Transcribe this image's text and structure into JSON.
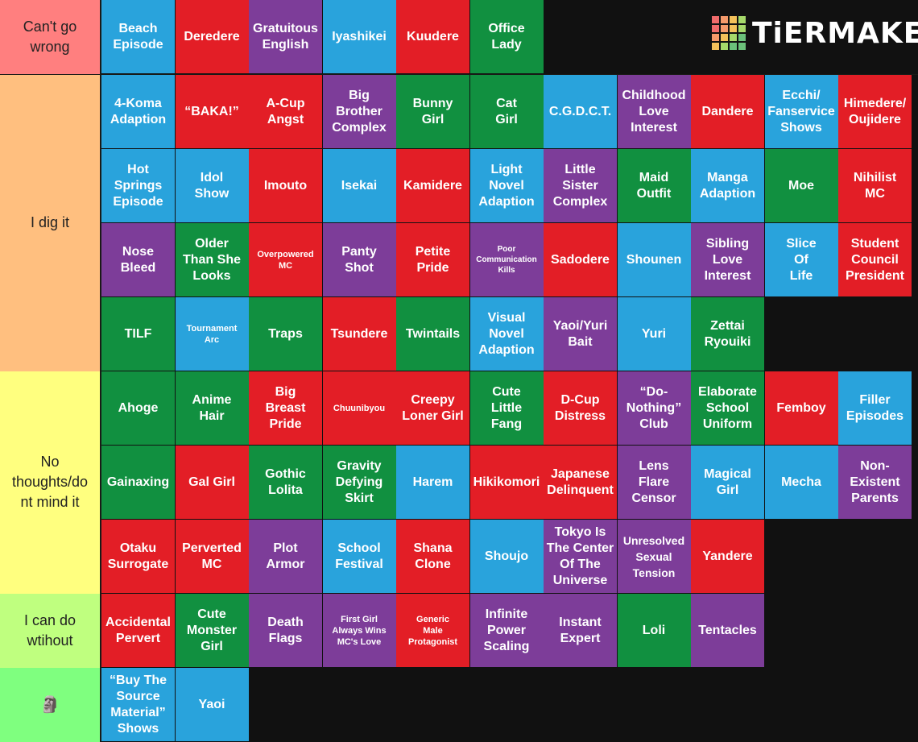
{
  "logo": {
    "text": "TiERMAKER",
    "grid_colors": [
      "#f06b6b",
      "#f59a6b",
      "#f4c15a",
      "#a6d96a",
      "#f06b6b",
      "#f59a6b",
      "#f4c15a",
      "#a6d96a",
      "#f59a6b",
      "#f4c15a",
      "#a6d96a",
      "#6bc17a",
      "#f4c15a",
      "#a6d96a",
      "#6bc17a",
      "#6bc17a"
    ]
  },
  "tiers": [
    {
      "label": "Can't go\nwrong",
      "color": "#ff7f7f",
      "items": [
        {
          "text": "Beach\nEpisode",
          "color": "#29a3dc"
        },
        {
          "text": "Deredere",
          "color": "#e31e26"
        },
        {
          "text": "Gratuitous\nEnglish",
          "color": "#7d3d99"
        },
        {
          "text": "Iyashikei",
          "color": "#29a3dc"
        },
        {
          "text": "Kuudere",
          "color": "#e31e26"
        },
        {
          "text": "Office\nLady",
          "color": "#119040"
        }
      ]
    },
    {
      "label": "I dig it",
      "color": "#ffbf7f",
      "items": [
        {
          "text": "4-Koma\nAdaption",
          "color": "#29a3dc"
        },
        {
          "text": "“BAKA!”",
          "color": "#e31e26"
        },
        {
          "text": "A-Cup\nAngst",
          "color": "#e31e26"
        },
        {
          "text": "Big\nBrother\nComplex",
          "color": "#7d3d99"
        },
        {
          "text": "Bunny\nGirl",
          "color": "#119040"
        },
        {
          "text": "Cat\nGirl",
          "color": "#119040"
        },
        {
          "text": "C.G.D.C.T.",
          "color": "#29a3dc"
        },
        {
          "text": "Childhood\nLove\nInterest",
          "color": "#7d3d99"
        },
        {
          "text": "Dandere",
          "color": "#e31e26"
        },
        {
          "text": "Ecchi/\nFanservice\nShows",
          "color": "#29a3dc"
        },
        {
          "text": "Himedere/\nOujidere",
          "color": "#e31e26"
        },
        {
          "text": "Hot\nSprings\nEpisode",
          "color": "#29a3dc"
        },
        {
          "text": "Idol\nShow",
          "color": "#29a3dc"
        },
        {
          "text": "Imouto",
          "color": "#e31e26"
        },
        {
          "text": "Isekai",
          "color": "#29a3dc"
        },
        {
          "text": "Kamidere",
          "color": "#e31e26"
        },
        {
          "text": "Light\nNovel\nAdaption",
          "color": "#29a3dc"
        },
        {
          "text": "Little\nSister\nComplex",
          "color": "#7d3d99"
        },
        {
          "text": "Maid\nOutfit",
          "color": "#119040"
        },
        {
          "text": "Manga\nAdaption",
          "color": "#29a3dc"
        },
        {
          "text": "Moe",
          "color": "#119040"
        },
        {
          "text": "Nihilist\nMC",
          "color": "#e31e26"
        },
        {
          "text": "Nose\nBleed",
          "color": "#7d3d99"
        },
        {
          "text": "Older\nThan She\nLooks",
          "color": "#119040"
        },
        {
          "text": "Overpowered\nMC",
          "color": "#e31e26",
          "size": "small"
        },
        {
          "text": "Panty\nShot",
          "color": "#7d3d99"
        },
        {
          "text": "Petite\nPride",
          "color": "#e31e26"
        },
        {
          "text": "Poor\nCommunication\nKills",
          "color": "#7d3d99",
          "size": "tiny"
        },
        {
          "text": "Sadodere",
          "color": "#e31e26"
        },
        {
          "text": "Shounen",
          "color": "#29a3dc"
        },
        {
          "text": "Sibling\nLove\nInterest",
          "color": "#7d3d99"
        },
        {
          "text": "Slice\nOf\nLife",
          "color": "#29a3dc"
        },
        {
          "text": "Student\nCouncil\nPresident",
          "color": "#e31e26"
        },
        {
          "text": "TILF",
          "color": "#119040"
        },
        {
          "text": "Tournament\nArc",
          "color": "#29a3dc",
          "size": "small"
        },
        {
          "text": "Traps",
          "color": "#119040"
        },
        {
          "text": "Tsundere",
          "color": "#e31e26"
        },
        {
          "text": "Twintails",
          "color": "#119040"
        },
        {
          "text": "Visual\nNovel\nAdaption",
          "color": "#29a3dc"
        },
        {
          "text": "Yaoi/Yuri\nBait",
          "color": "#7d3d99"
        },
        {
          "text": "Yuri",
          "color": "#29a3dc"
        },
        {
          "text": "Zettai\nRyouiki",
          "color": "#119040"
        }
      ]
    },
    {
      "label": "No\nthoughts/do\nnt mind it",
      "color": "#ffff7f",
      "items": [
        {
          "text": "Ahoge",
          "color": "#119040"
        },
        {
          "text": "Anime\nHair",
          "color": "#119040"
        },
        {
          "text": "Big\nBreast\nPride",
          "color": "#e31e26"
        },
        {
          "text": "Chuunibyou",
          "color": "#e31e26",
          "size": "small"
        },
        {
          "text": "Creepy\nLoner Girl",
          "color": "#e31e26"
        },
        {
          "text": "Cute\nLittle\nFang",
          "color": "#119040"
        },
        {
          "text": "D-Cup\nDistress",
          "color": "#e31e26"
        },
        {
          "text": "“Do-\nNothing”\nClub",
          "color": "#7d3d99"
        },
        {
          "text": "Elaborate\nSchool\nUniform",
          "color": "#119040"
        },
        {
          "text": "Femboy",
          "color": "#e31e26"
        },
        {
          "text": "Filler\nEpisodes",
          "color": "#29a3dc"
        },
        {
          "text": "Gainaxing",
          "color": "#119040"
        },
        {
          "text": "Gal Girl",
          "color": "#e31e26"
        },
        {
          "text": "Gothic\nLolita",
          "color": "#119040"
        },
        {
          "text": "Gravity\nDefying\nSkirt",
          "color": "#119040"
        },
        {
          "text": "Harem",
          "color": "#29a3dc"
        },
        {
          "text": "Hikikomori",
          "color": "#e31e26"
        },
        {
          "text": "Japanese\nDelinquent",
          "color": "#e31e26"
        },
        {
          "text": "Lens\nFlare\nCensor",
          "color": "#7d3d99"
        },
        {
          "text": "Magical\nGirl",
          "color": "#29a3dc"
        },
        {
          "text": "Mecha",
          "color": "#29a3dc"
        },
        {
          "text": "Non-\nExistent\nParents",
          "color": "#7d3d99"
        },
        {
          "text": "Otaku\nSurrogate",
          "color": "#e31e26"
        },
        {
          "text": "Perverted\nMC",
          "color": "#e31e26"
        },
        {
          "text": "Plot\nArmor",
          "color": "#7d3d99"
        },
        {
          "text": "School\nFestival",
          "color": "#29a3dc"
        },
        {
          "text": "Shana\nClone",
          "color": "#e31e26"
        },
        {
          "text": "Shoujo",
          "color": "#29a3dc"
        },
        {
          "text": "Tokyo Is\nThe Center\nOf The\nUniverse",
          "color": "#7d3d99"
        },
        {
          "text": "Unresolved\nSexual\nTension",
          "color": "#7d3d99",
          "size": "mid"
        },
        {
          "text": "Yandere",
          "color": "#e31e26"
        }
      ]
    },
    {
      "label": "I can do\nwtihout",
      "color": "#bfff7f",
      "items": [
        {
          "text": "Accidental\nPervert",
          "color": "#e31e26"
        },
        {
          "text": "Cute\nMonster\nGirl",
          "color": "#119040"
        },
        {
          "text": "Death\nFlags",
          "color": "#7d3d99"
        },
        {
          "text": "First Girl\nAlways Wins\nMC's Love",
          "color": "#7d3d99",
          "size": "small"
        },
        {
          "text": "Generic\nMale\nProtagonist",
          "color": "#e31e26",
          "size": "small"
        },
        {
          "text": "Infinite\nPower\nScaling",
          "color": "#7d3d99"
        },
        {
          "text": "Instant\nExpert",
          "color": "#7d3d99"
        },
        {
          "text": "Loli",
          "color": "#119040"
        },
        {
          "text": "Tentacles",
          "color": "#7d3d99"
        }
      ]
    },
    {
      "label": "🗿",
      "color": "#7fff7f",
      "items": [
        {
          "text": "“Buy The\nSource\nMaterial”\nShows",
          "color": "#29a3dc"
        },
        {
          "text": "Yaoi",
          "color": "#29a3dc"
        }
      ]
    }
  ]
}
